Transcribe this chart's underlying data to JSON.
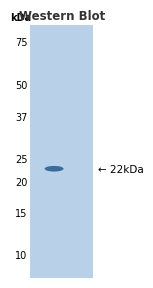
{
  "title": "Western Blot",
  "title_fontsize": 8.5,
  "title_fontweight": "bold",
  "bg_color": "#b8d0e8",
  "panel_bg": "#ffffff",
  "kda_label_top": "kDa",
  "kda_labels": [
    "75",
    "50",
    "37",
    "25",
    "20",
    "15",
    "10"
  ],
  "kda_values": [
    75,
    50,
    37,
    25,
    20,
    15,
    10
  ],
  "y_min": 8,
  "y_max": 88,
  "band_kda": 22.5,
  "band_color": "#3a6b9a",
  "annotation_text": "← 22kDa",
  "annotation_kda": 22.5,
  "label_fontsize": 7.0,
  "annotation_fontsize": 7.5,
  "title_color": "#333333"
}
